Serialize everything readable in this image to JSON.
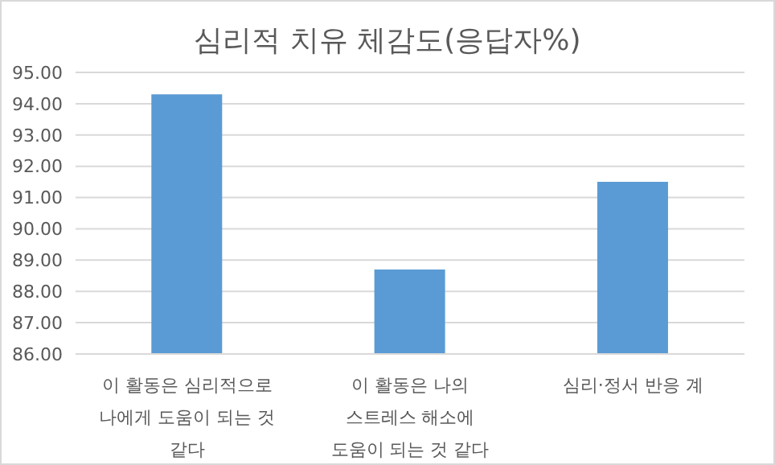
{
  "chart_data": {
    "type": "bar",
    "title": "심리적 치유 체감도(응답자%)",
    "categories": [
      "이 활동은 심리적으로 나에게 도움이 되는 것 같다",
      "이 활동은 나의 스트레스 해소에 도움이 되는 것 같다",
      "심리·정서 반응 계"
    ],
    "values": [
      94.3,
      88.7,
      91.5
    ],
    "color": "#5b9bd5",
    "ylim": [
      86,
      95
    ],
    "yticks": [
      {
        "value": 86,
        "label": "86.00"
      },
      {
        "value": 87,
        "label": "87.00"
      },
      {
        "value": 88,
        "label": "88.00"
      },
      {
        "value": 89,
        "label": "89.00"
      },
      {
        "value": 90,
        "label": "90.00"
      },
      {
        "value": 91,
        "label": "91.00"
      },
      {
        "value": 92,
        "label": "92.00"
      },
      {
        "value": 93,
        "label": "93.00"
      },
      {
        "value": 94,
        "label": "94.00"
      },
      {
        "value": 95,
        "label": "95.00"
      }
    ],
    "grid": "y"
  }
}
